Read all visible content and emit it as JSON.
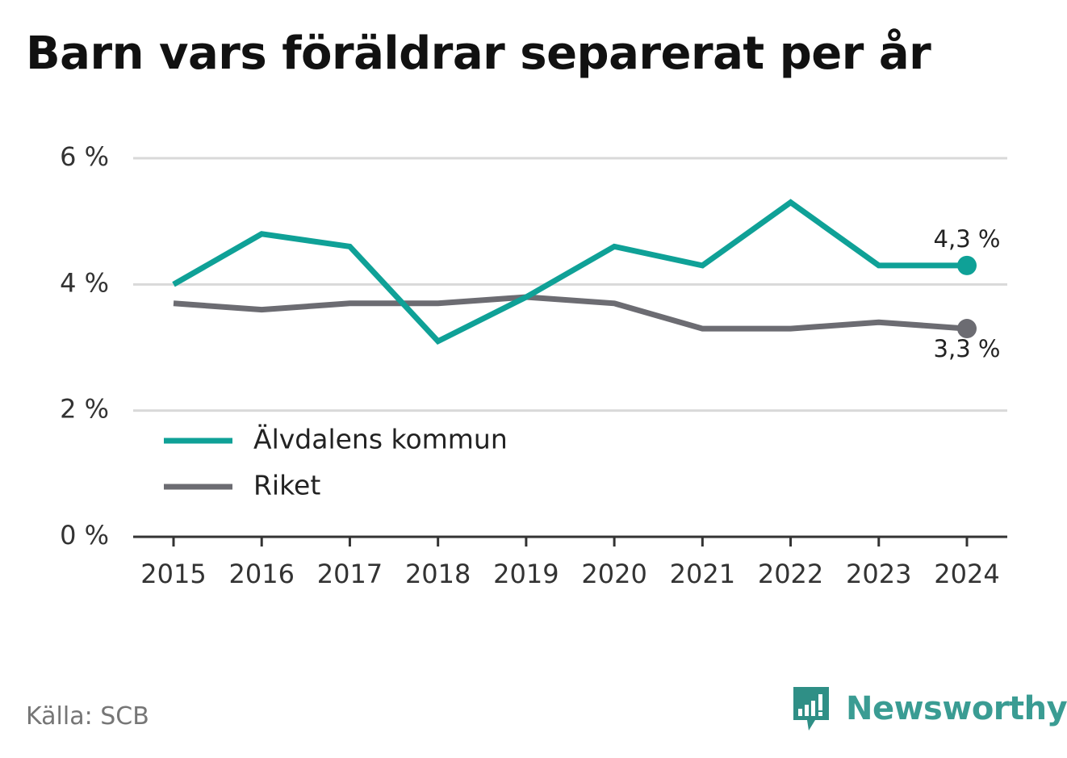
{
  "title": "Barn vars föräldrar separerat per år",
  "source": "Källa: SCB",
  "brand": {
    "name": "Newsworthy",
    "icon": "newsworthy-logo-icon",
    "color": "#2f8f86"
  },
  "colors": {
    "series_1": "#0fa197",
    "series_2": "#6c6c72",
    "grid": "#d9d9d9",
    "axis": "#333333",
    "text": "#333333"
  },
  "chart_data": {
    "type": "line",
    "title": "Barn vars föräldrar separerat per år",
    "xlabel": "",
    "ylabel": "",
    "x": [
      2015,
      2016,
      2017,
      2018,
      2019,
      2020,
      2021,
      2022,
      2023,
      2024
    ],
    "x_tick_labels": [
      "2015",
      "2016",
      "2017",
      "2018",
      "2019",
      "2020",
      "2021",
      "2022",
      "2023",
      "2024"
    ],
    "ylim": [
      0,
      6
    ],
    "y_ticks": [
      0,
      2,
      4,
      6
    ],
    "y_tick_labels": [
      "0 %",
      "2 %",
      "4 %",
      "6 %"
    ],
    "grid": true,
    "legend_position": "bottom-left",
    "series": [
      {
        "name": "Älvdalens kommun",
        "color": "#0fa197",
        "values": [
          4.0,
          4.8,
          4.6,
          3.1,
          3.8,
          4.6,
          4.3,
          5.3,
          4.3,
          4.3
        ],
        "end_label": "4,3 %"
      },
      {
        "name": "Riket",
        "color": "#6c6c72",
        "values": [
          3.7,
          3.6,
          3.7,
          3.7,
          3.8,
          3.7,
          3.3,
          3.3,
          3.4,
          3.3
        ],
        "end_label": "3,3 %"
      }
    ]
  }
}
